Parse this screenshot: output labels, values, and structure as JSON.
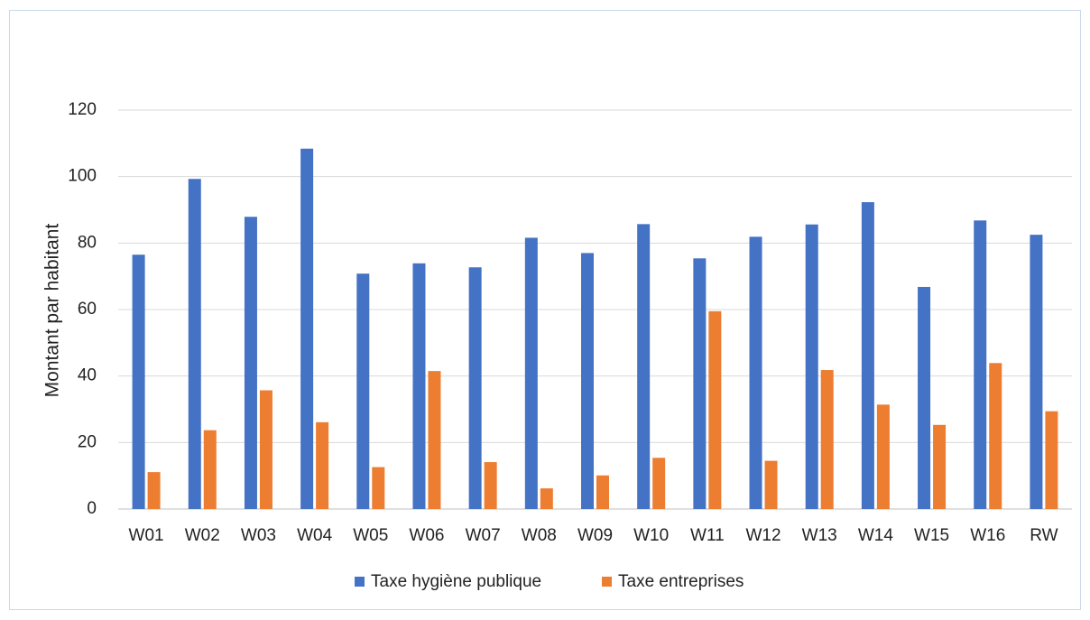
{
  "chart_data": {
    "type": "bar",
    "title": "",
    "xlabel": "",
    "ylabel": "Montant par habitant",
    "ylim": [
      0,
      120
    ],
    "yticks": [
      0,
      20,
      40,
      60,
      80,
      100,
      120
    ],
    "grid": true,
    "legend_position": "bottom",
    "categories": [
      "W01",
      "W02",
      "W03",
      "W04",
      "W05",
      "W06",
      "W07",
      "W08",
      "W09",
      "W10",
      "W11",
      "W12",
      "W13",
      "W14",
      "W15",
      "W16",
      "RW"
    ],
    "series": [
      {
        "name": "Taxe hygiène publique",
        "color": "#4472c4",
        "values": [
          76.5,
          99.3,
          87.9,
          108.4,
          70.8,
          73.9,
          72.7,
          81.6,
          77.0,
          85.7,
          75.4,
          81.9,
          85.6,
          92.3,
          66.8,
          86.8,
          82.5
        ]
      },
      {
        "name": "Taxe entreprises",
        "color": "#ed7d31",
        "values": [
          11.1,
          23.7,
          35.7,
          26.1,
          12.6,
          41.5,
          14.1,
          6.2,
          10.1,
          15.4,
          59.5,
          14.5,
          41.8,
          31.4,
          25.3,
          43.9,
          29.4
        ]
      }
    ]
  }
}
